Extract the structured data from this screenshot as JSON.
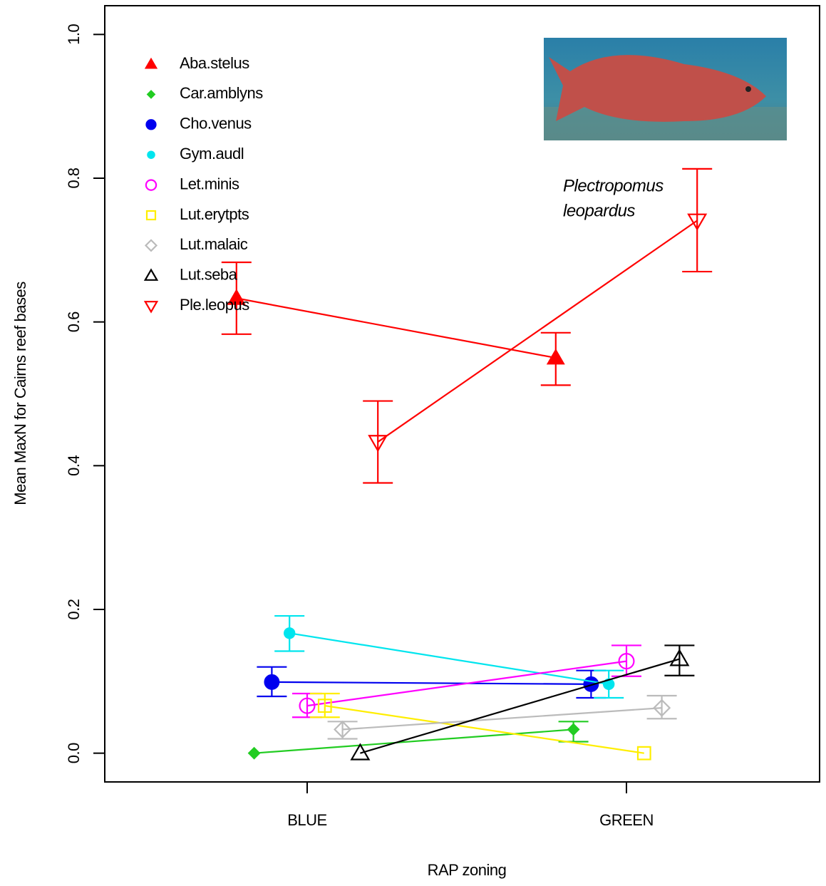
{
  "chart_data": {
    "type": "dodged-point-errorbar",
    "x_label": "RAP zoning",
    "y_label": "Mean MaxN for Cairns reef bases",
    "categories": [
      "BLUE",
      "GREEN"
    ],
    "ylim": [
      -0.04,
      1.04
    ],
    "yticks": [
      {
        "value": 0,
        "label": "0.0"
      },
      {
        "value": 0.2,
        "label": "0.2"
      },
      {
        "value": 0.4,
        "label": "0.4"
      },
      {
        "value": 0.6,
        "label": "0.6"
      },
      {
        "value": 0.8,
        "label": "0.8"
      },
      {
        "value": 1,
        "label": "1.0"
      }
    ],
    "legend": "top-left",
    "annotation": [
      "Plectropomus",
      "leopardus"
    ],
    "series": [
      {
        "name": "Aba.stelus",
        "color": "#ff0000",
        "marker": "triangle-filled",
        "values": [
          0.633,
          0.55
        ],
        "lower": [
          0.583,
          0.512
        ],
        "upper": [
          0.683,
          0.585
        ]
      },
      {
        "name": "Car.amblyns",
        "color": "#22cc22",
        "marker": "diamond-filled",
        "values": [
          0,
          0.033
        ],
        "lower": [
          null,
          0.016
        ],
        "upper": [
          null,
          0.044
        ]
      },
      {
        "name": "Cho.venus",
        "color": "#0000ee",
        "marker": "circle-filled",
        "values": [
          0.099,
          0.096
        ],
        "lower": [
          0.079,
          0.077
        ],
        "upper": [
          0.12,
          0.115
        ]
      },
      {
        "name": "Gym.audl",
        "color": "#00e5ee",
        "marker": "dot-filled",
        "values": [
          0.167,
          0.096
        ],
        "lower": [
          0.142,
          0.077
        ],
        "upper": [
          0.191,
          0.115
        ]
      },
      {
        "name": "Let.minis",
        "color": "#ff00ff",
        "marker": "circle-open",
        "values": [
          0.066,
          0.128
        ],
        "lower": [
          0.05,
          0.107
        ],
        "upper": [
          0.083,
          0.15
        ]
      },
      {
        "name": "Lut.erytpts",
        "color": "#ffee00",
        "marker": "square-open",
        "values": [
          0.066,
          0
        ],
        "lower": [
          0.05,
          null
        ],
        "upper": [
          0.083,
          null
        ]
      },
      {
        "name": "Lut.malaic",
        "color": "#bbbbbb",
        "marker": "diamond-open",
        "values": [
          0.033,
          0.063
        ],
        "lower": [
          0.02,
          0.048
        ],
        "upper": [
          0.044,
          0.08
        ]
      },
      {
        "name": "Lut.seba",
        "color": "#000000",
        "marker": "triangle-open",
        "values": [
          0,
          0.131
        ],
        "lower": [
          null,
          0.108
        ],
        "upper": [
          null,
          0.15
        ]
      },
      {
        "name": "Ple.leopus",
        "color": "#ff0000",
        "marker": "invtriangle-open",
        "values": [
          0.433,
          0.741
        ],
        "lower": [
          0.376,
          0.67
        ],
        "upper": [
          0.49,
          0.813
        ]
      }
    ]
  }
}
